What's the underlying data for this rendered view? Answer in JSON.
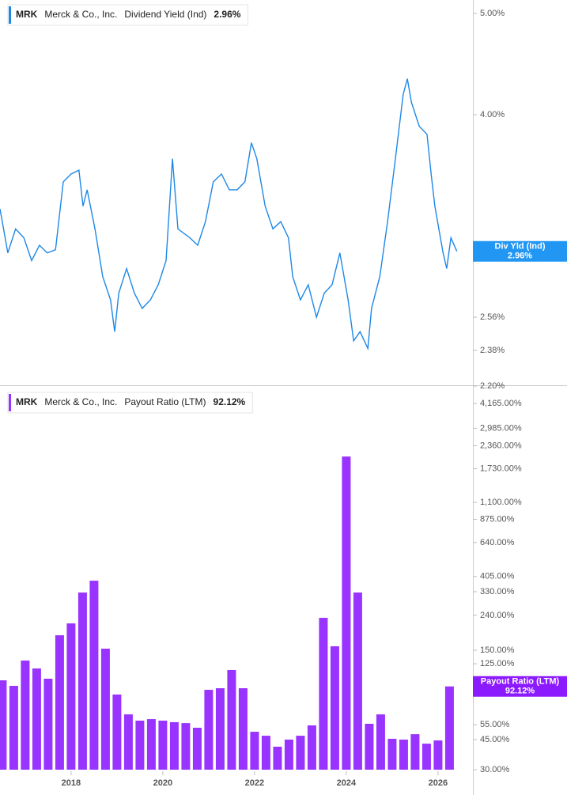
{
  "chart_data": [
    {
      "type": "line",
      "log_scale": true,
      "ticker": "MRK",
      "company": "Merck & Co., Inc.",
      "current_value": "2.96%",
      "badge_label": "Div Yld (Ind)",
      "badge_color": "#2196f3",
      "xlim": [
        2016.45,
        2026.76
      ],
      "ylim": [
        2.2,
        5.15
      ],
      "yticks": [
        {
          "value": 2.2,
          "label": "2.20%"
        },
        {
          "value": 2.38,
          "label": "2.38%"
        },
        {
          "value": 2.56,
          "label": "2.56%"
        },
        {
          "value": 4,
          "label": "4.00%"
        },
        {
          "value": 5,
          "label": "5.00%"
        }
      ],
      "x": [
        2016.45,
        2016.62,
        2016.79,
        2016.97,
        2017.14,
        2017.31,
        2017.48,
        2017.66,
        2017.83,
        2018.0,
        2018.17,
        2018.26,
        2018.35,
        2018.52,
        2018.69,
        2018.86,
        2018.95,
        2019.04,
        2019.21,
        2019.38,
        2019.55,
        2019.73,
        2019.9,
        2020.07,
        2020.21,
        2020.33,
        2020.59,
        2020.76,
        2020.93,
        2021.1,
        2021.28,
        2021.45,
        2021.62,
        2021.79,
        2021.93,
        2022.05,
        2022.23,
        2022.4,
        2022.57,
        2022.74,
        2022.83,
        2023.0,
        2023.17,
        2023.35,
        2023.52,
        2023.69,
        2023.86,
        2024.04,
        2024.16,
        2024.3,
        2024.47,
        2024.55,
        2024.73,
        2024.9,
        2025.07,
        2025.24,
        2025.33,
        2025.42,
        2025.59,
        2025.76,
        2025.85,
        2025.93,
        2026.11,
        2026.19,
        2026.28,
        2026.41
      ],
      "series": [
        {
          "name": "Dividend Yield (Ind)",
          "color": "#1e88e5",
          "values": [
            3.25,
            2.95,
            3.11,
            3.05,
            2.9,
            3.0,
            2.95,
            2.97,
            3.45,
            3.51,
            3.54,
            3.27,
            3.39,
            3.11,
            2.8,
            2.66,
            2.48,
            2.7,
            2.85,
            2.7,
            2.61,
            2.66,
            2.75,
            2.9,
            3.63,
            3.11,
            3.05,
            3.0,
            3.16,
            3.45,
            3.51,
            3.39,
            3.39,
            3.45,
            3.76,
            3.63,
            3.27,
            3.11,
            3.16,
            3.05,
            2.8,
            2.66,
            2.75,
            2.56,
            2.7,
            2.75,
            2.95,
            2.66,
            2.43,
            2.48,
            2.39,
            2.61,
            2.8,
            3.16,
            3.63,
            4.18,
            4.33,
            4.11,
            3.9,
            3.83,
            3.51,
            3.27,
            2.95,
            2.85,
            3.05,
            2.96
          ]
        }
      ]
    },
    {
      "type": "bar",
      "log_scale": true,
      "ticker": "MRK",
      "company": "Merck & Co., Inc.",
      "current_value": "92.12%",
      "badge_label": "Payout Ratio (LTM)",
      "badge_color": "#8c1aff",
      "xlim": [
        2016.45,
        2026.76
      ],
      "xticks": [
        2018,
        2020,
        2022,
        2024,
        2026
      ],
      "ylim": [
        30,
        5000
      ],
      "yticks": [
        {
          "value": 30,
          "label": "30.00%"
        },
        {
          "value": 45,
          "label": "45.00%"
        },
        {
          "value": 55,
          "label": "55.00%"
        },
        {
          "value": 125,
          "label": "125.00%"
        },
        {
          "value": 150,
          "label": "150.00%"
        },
        {
          "value": 240,
          "label": "240.00%"
        },
        {
          "value": 330,
          "label": "330.00%"
        },
        {
          "value": 405,
          "label": "405.00%"
        },
        {
          "value": 640,
          "label": "640.00%"
        },
        {
          "value": 875,
          "label": "875.00%"
        },
        {
          "value": 1100,
          "label": "1,100.00%"
        },
        {
          "value": 1730,
          "label": "1,730.00%"
        },
        {
          "value": 2360,
          "label": "2,360.00%"
        },
        {
          "value": 2985,
          "label": "2,985.00%"
        },
        {
          "value": 4165,
          "label": "4,165.00%"
        }
      ],
      "x": [
        2016.5,
        2016.75,
        2017.0,
        2017.25,
        2017.5,
        2017.75,
        2018.0,
        2018.25,
        2018.5,
        2018.75,
        2019.0,
        2019.25,
        2019.5,
        2019.75,
        2020.0,
        2020.25,
        2020.5,
        2020.75,
        2021.0,
        2021.25,
        2021.5,
        2021.75,
        2022.0,
        2022.25,
        2022.5,
        2022.75,
        2023.0,
        2023.25,
        2023.5,
        2023.75,
        2024.0,
        2024.25,
        2024.5,
        2024.75,
        2025.0,
        2025.25,
        2025.5,
        2025.75,
        2026.0,
        2026.25
      ],
      "series": [
        {
          "name": "Payout Ratio (LTM)",
          "color": "#9933ff",
          "values": [
            100,
            92.8,
            130.5,
            117.3,
            102.2,
            183.5,
            215.3,
            326.4,
            382.8,
            153.2,
            82.6,
            63.2,
            58.1,
            59.3,
            58.1,
            56.9,
            56.2,
            52.8,
            88.0,
            89.9,
            114.9,
            89.9,
            50.0,
            47.4,
            40.9,
            45.0,
            47.4,
            54.5,
            232.1,
            158.2,
            2040,
            326.4,
            55.7,
            63.2,
            45.5,
            45.0,
            48.4,
            42.6,
            44.5,
            92.12
          ]
        }
      ]
    }
  ]
}
